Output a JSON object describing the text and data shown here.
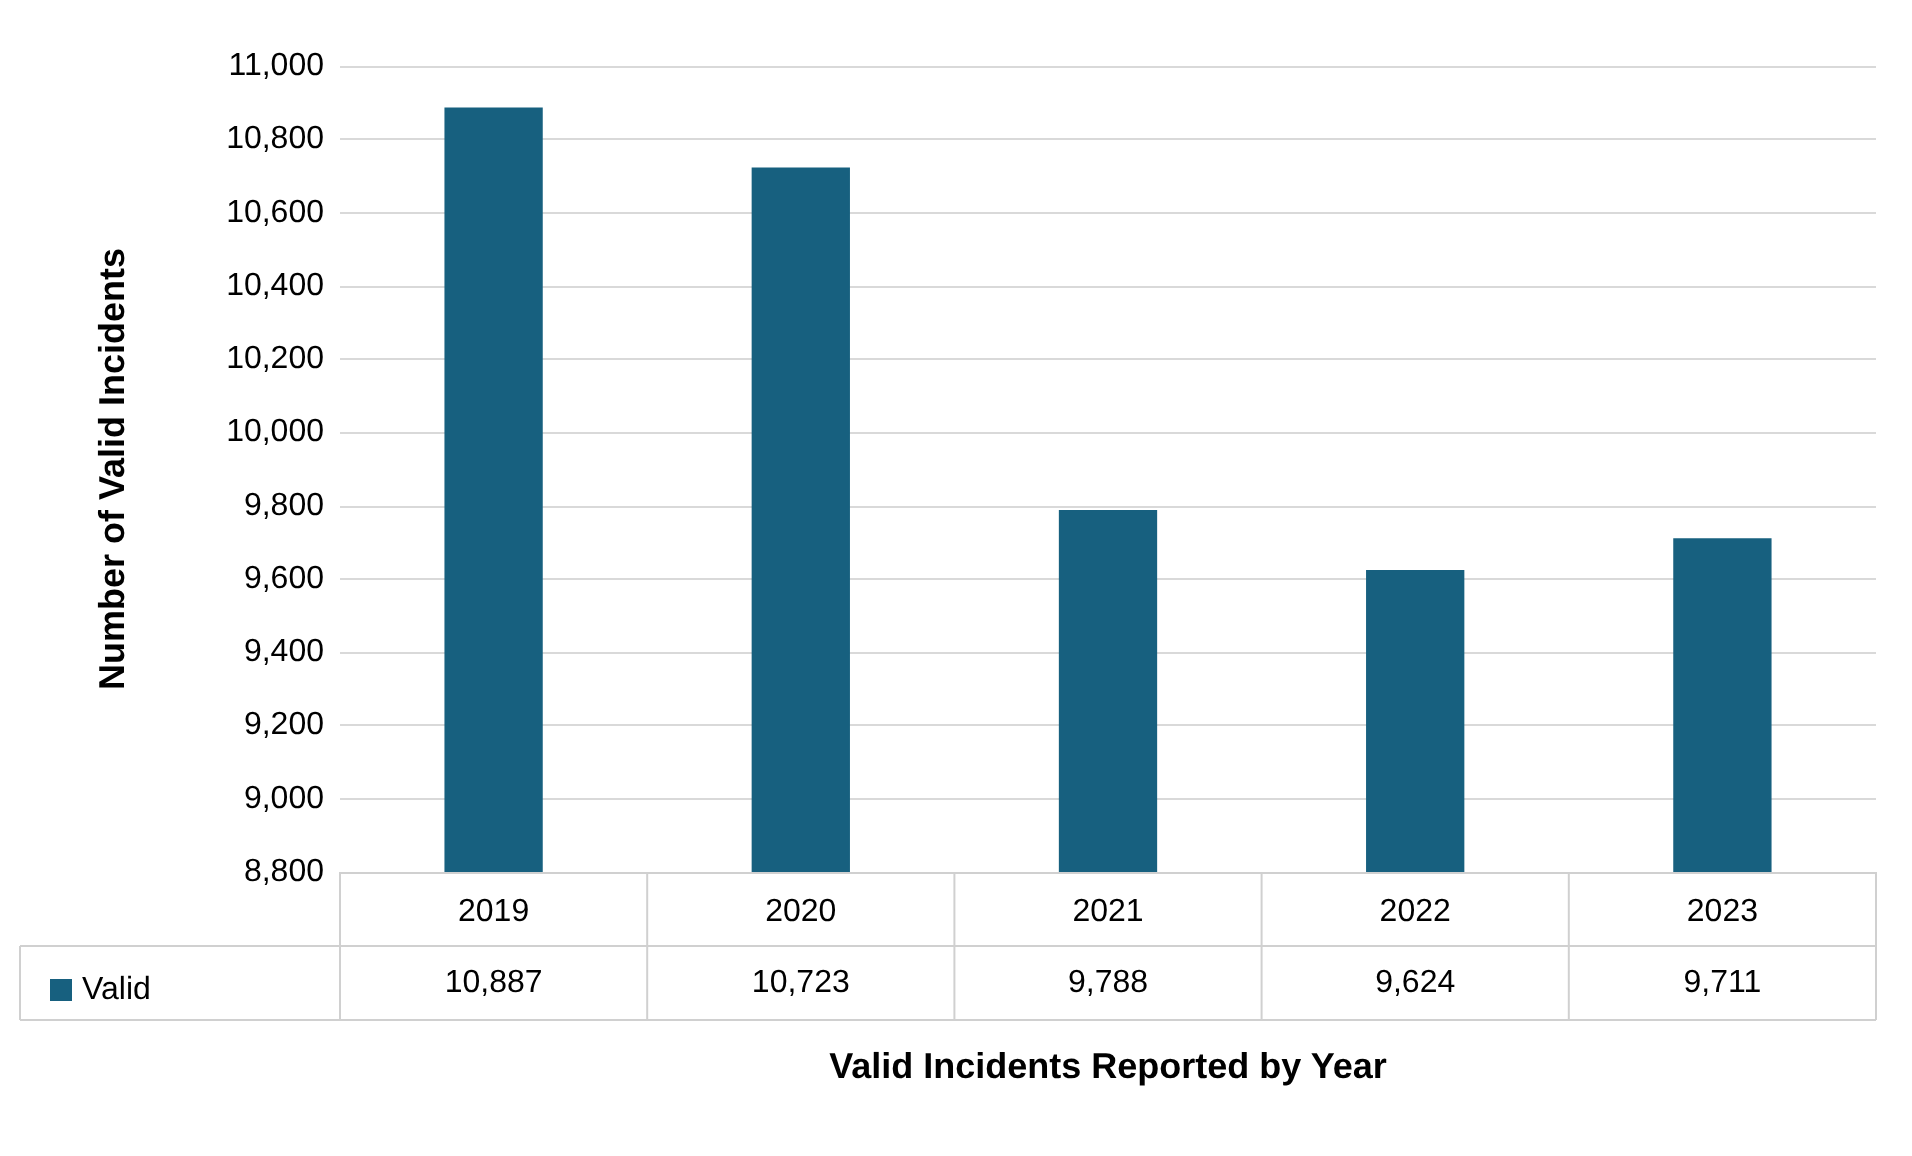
{
  "chart_data": {
    "type": "bar",
    "xlabel": "Valid Incidents Reported by Year",
    "ylabel": "Number of Valid Incidents",
    "categories": [
      "2019",
      "2020",
      "2021",
      "2022",
      "2023"
    ],
    "series": [
      {
        "name": "Valid",
        "color": "#17607f",
        "values": [
          10887,
          10723,
          9788,
          9624,
          9711
        ],
        "value_labels": [
          "10,887",
          "10,723",
          "9,788",
          "9,624",
          "9,711"
        ]
      }
    ],
    "ylim": [
      8800,
      11000
    ],
    "yticks": [
      {
        "value": 8800,
        "label": "8,800"
      },
      {
        "value": 9000,
        "label": "9,000"
      },
      {
        "value": 9200,
        "label": "9,200"
      },
      {
        "value": 9400,
        "label": "9,400"
      },
      {
        "value": 9600,
        "label": "9,600"
      },
      {
        "value": 9800,
        "label": "9,800"
      },
      {
        "value": 10000,
        "label": "10,000"
      },
      {
        "value": 10200,
        "label": "10,200"
      },
      {
        "value": 10400,
        "label": "10,400"
      },
      {
        "value": 10600,
        "label": "10,600"
      },
      {
        "value": 10800,
        "label": "10,800"
      },
      {
        "value": 11000,
        "label": "11,000"
      }
    ],
    "grid": "y",
    "legend": "bottom left"
  }
}
